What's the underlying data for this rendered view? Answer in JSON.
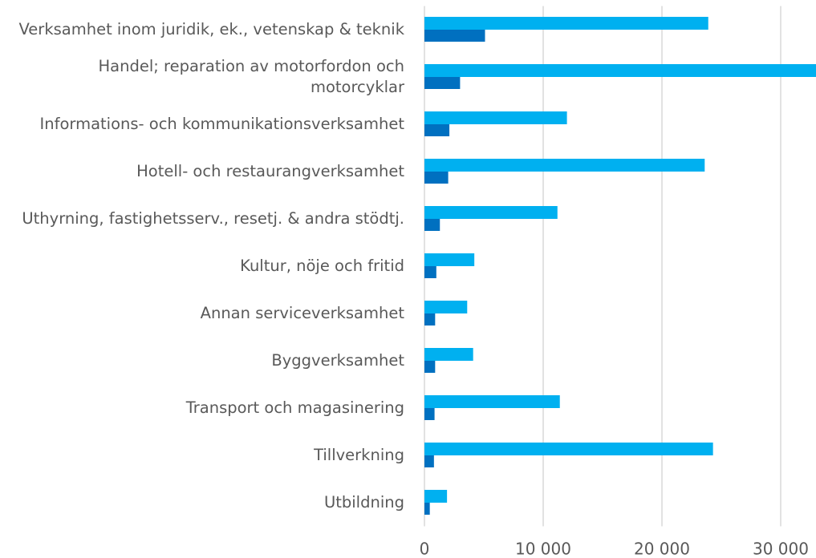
{
  "chart_data": {
    "type": "barh",
    "categories": [
      "Verksamhet inom juridik, ek., vetenskap & teknik",
      "Handel; reparation av motorfordon och motorcyklar",
      "Informations- och kommunikationsverksamhet",
      "Hotell- och restaurangverksamhet",
      "Uthyrning, fastighetsserv., resetj. & andra stödtj.",
      "Kultur, nöje och fritid",
      "Annan serviceverksamhet",
      "Byggverksamhet",
      "Transport och magasinering",
      "Tillverkning",
      "Utbildning"
    ],
    "series": [
      {
        "color": "#00b0f0",
        "values": [
          23900,
          33500,
          12000,
          23600,
          11200,
          4200,
          3600,
          4100,
          11400,
          24300,
          1900
        ]
      },
      {
        "color": "#0070c0",
        "values": [
          5100,
          3000,
          2100,
          2000,
          1300,
          1000,
          900,
          900,
          850,
          800,
          450
        ]
      }
    ],
    "xlim": [
      0,
      33000
    ],
    "xticks": [
      0,
      {
        "value": 10000,
        "label": "10 000"
      },
      {
        "value": 20000,
        "label": "20 000"
      },
      {
        "value": 30000,
        "label": "30 000"
      }
    ],
    "grid": true
  }
}
